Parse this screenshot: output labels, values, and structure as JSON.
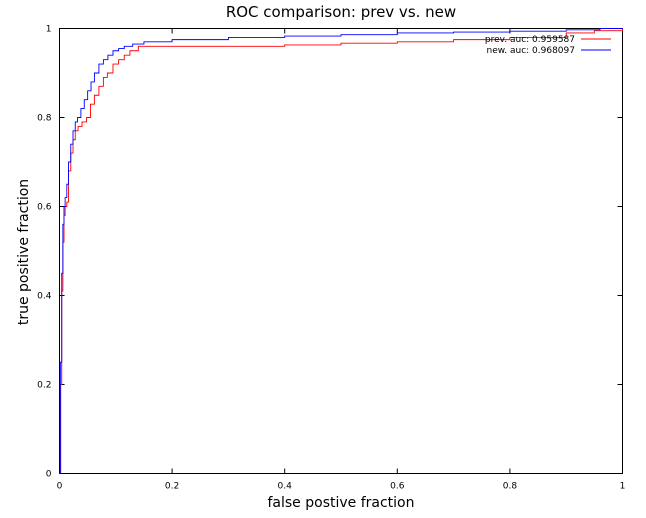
{
  "chart_data": {
    "type": "line",
    "title": "ROC comparison: prev vs. new",
    "xlabel": "false postive fraction",
    "ylabel": "true positive fraction",
    "xlim": [
      0,
      1
    ],
    "ylim": [
      0,
      1
    ],
    "x_ticks": [
      "0",
      "0.2",
      "0.4",
      "0.6",
      "0.8",
      "1"
    ],
    "y_ticks": [
      "0",
      "0.2",
      "0.4",
      "0.6",
      "0.8",
      "1"
    ],
    "grid": false,
    "legend_position": "top-right",
    "series": [
      {
        "name": "prev. auc: 0.959587",
        "color": "#ff0000",
        "x": [
          0,
          0.002,
          0.004,
          0.006,
          0.008,
          0.01,
          0.013,
          0.016,
          0.02,
          0.024,
          0.028,
          0.033,
          0.04,
          0.048,
          0.055,
          0.062,
          0.07,
          0.078,
          0.085,
          0.095,
          0.105,
          0.115,
          0.125,
          0.14,
          0.2,
          0.3,
          0.4,
          0.5,
          0.6,
          0.7,
          0.8,
          0.9,
          0.95,
          1.0
        ],
        "y": [
          0,
          0.2,
          0.41,
          0.52,
          0.58,
          0.6,
          0.61,
          0.68,
          0.72,
          0.75,
          0.77,
          0.78,
          0.79,
          0.8,
          0.83,
          0.85,
          0.87,
          0.89,
          0.9,
          0.92,
          0.93,
          0.94,
          0.95,
          0.96,
          0.96,
          0.96,
          0.963,
          0.967,
          0.97,
          0.975,
          0.98,
          0.99,
          0.995,
          1.0
        ]
      },
      {
        "name": "new. auc: 0.968097",
        "color": "#0000ff",
        "x": [
          0,
          0.002,
          0.004,
          0.006,
          0.008,
          0.01,
          0.013,
          0.016,
          0.02,
          0.024,
          0.028,
          0.032,
          0.038,
          0.044,
          0.05,
          0.056,
          0.062,
          0.07,
          0.078,
          0.086,
          0.095,
          0.105,
          0.115,
          0.13,
          0.15,
          0.2,
          0.3,
          0.4,
          0.5,
          0.6,
          0.7,
          0.8,
          0.9,
          0.96,
          1.0
        ],
        "y": [
          0,
          0.25,
          0.45,
          0.56,
          0.6,
          0.62,
          0.65,
          0.7,
          0.74,
          0.77,
          0.79,
          0.8,
          0.82,
          0.84,
          0.86,
          0.88,
          0.9,
          0.92,
          0.93,
          0.94,
          0.95,
          0.955,
          0.96,
          0.965,
          0.97,
          0.975,
          0.98,
          0.983,
          0.986,
          0.99,
          0.992,
          0.994,
          0.997,
          1.0,
          1.0
        ]
      }
    ]
  }
}
